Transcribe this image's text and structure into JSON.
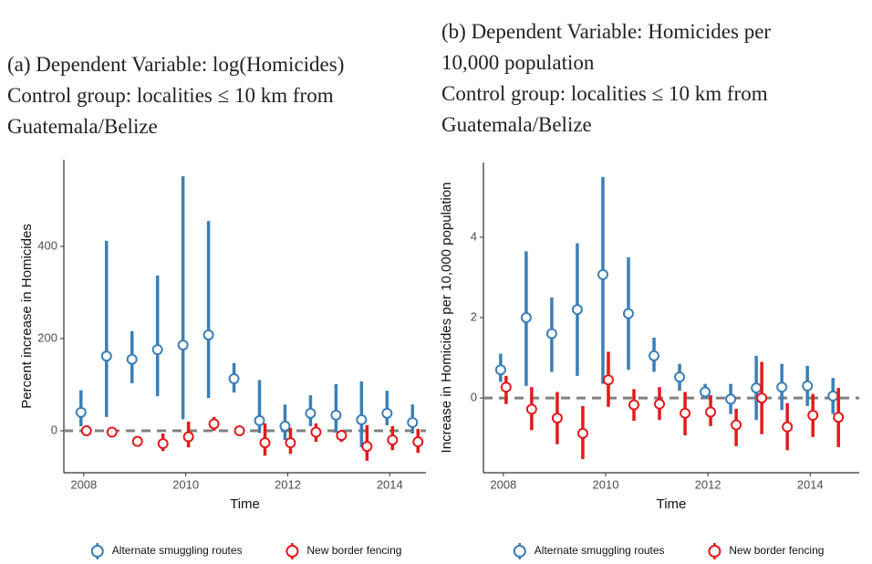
{
  "chart_data": [
    {
      "type": "errorbar",
      "title": [
        "(a) Dependent Variable: log(Homicides)"
      ],
      "subtitle": [
        "Control group: localities ≤ 10 km from",
        "Guatemala/Belize"
      ],
      "x_label": "Time",
      "y_label": "Percent increase in Homicides",
      "x": [
        2008,
        2008.5,
        2009,
        2009.5,
        2010,
        2010.5,
        2011,
        2011.5,
        2012,
        2012.5,
        2013,
        2013.5,
        2014,
        2014.5
      ],
      "series": [
        {
          "name": "Alternate smuggling routes",
          "color": "#3a7fb8",
          "values": [
            40,
            162,
            155,
            176,
            186,
            208,
            113,
            22,
            10,
            38,
            34,
            24,
            38,
            18
          ],
          "lower": [
            10,
            30,
            103,
            75,
            25,
            71,
            83,
            -5,
            -20,
            10,
            -4,
            -36,
            12,
            -6
          ],
          "upper": [
            88,
            412,
            216,
            337,
            552,
            455,
            147,
            110,
            57,
            77,
            101,
            107,
            87,
            57
          ]
        },
        {
          "name": "New border fencing",
          "color": "#e31a1c",
          "values": [
            0,
            -3,
            -23,
            -28,
            -13,
            15,
            0,
            -26,
            -26,
            -3,
            -10,
            -34,
            -20,
            -24
          ],
          "lower": [
            -10,
            -8,
            -28,
            -44,
            -36,
            0,
            -4,
            -54,
            -50,
            -24,
            -24,
            -65,
            -42,
            -48
          ],
          "upper": [
            12,
            2,
            -18,
            -6,
            20,
            30,
            4,
            16,
            6,
            16,
            2,
            12,
            10,
            4
          ]
        }
      ],
      "hline": 0,
      "xlim": [
        2007.61,
        2014.71
      ],
      "xticks": [
        2008,
        2010,
        2012,
        2014
      ],
      "ylim": [
        -91,
        588
      ],
      "yticks": [
        0,
        200,
        400
      ],
      "legend": "bottom"
    },
    {
      "type": "errorbar",
      "title": [
        "(b) Dependent Variable: Homicides per",
        "10,000 population"
      ],
      "subtitle": [
        "Control group: localities ≤ 10 km from",
        "Guatemala/Belize"
      ],
      "x_label": "Time",
      "y_label": "Increase in Homicides per 10,000 population",
      "x": [
        2008,
        2008.5,
        2009,
        2009.5,
        2010,
        2010.5,
        2011,
        2011.5,
        2012,
        2012.5,
        2013,
        2013.5,
        2014,
        2014.5
      ],
      "series": [
        {
          "name": "Alternate smuggling routes",
          "color": "#3a7fb8",
          "values": [
            0.7,
            2.0,
            1.6,
            2.2,
            3.07,
            2.1,
            1.05,
            0.52,
            0.15,
            -0.03,
            0.25,
            0.27,
            0.3,
            0.05
          ],
          "lower": [
            0.4,
            0.3,
            0.65,
            0.55,
            0.35,
            0.7,
            0.65,
            0.18,
            0,
            -0.4,
            -0.55,
            -0.3,
            -0.2,
            -0.4
          ],
          "upper": [
            1.1,
            3.65,
            2.5,
            3.85,
            5.5,
            3.5,
            1.5,
            0.85,
            0.35,
            0.35,
            1.05,
            0.85,
            0.8,
            0.5
          ]
        },
        {
          "name": "New border fencing",
          "color": "#e31a1c",
          "values": [
            0.27,
            -0.28,
            -0.5,
            -0.88,
            0.45,
            -0.17,
            -0.15,
            -0.38,
            -0.35,
            -0.67,
            0,
            -0.72,
            -0.43,
            -0.48
          ],
          "lower": [
            -0.15,
            -0.8,
            -1.15,
            -1.52,
            -0.22,
            -0.57,
            -0.55,
            -0.93,
            -0.7,
            -1.2,
            -0.9,
            -1.3,
            -0.97,
            -1.22
          ],
          "upper": [
            0.55,
            0.27,
            0.15,
            -0.2,
            1.15,
            0.22,
            0.27,
            0.15,
            0.07,
            -0.27,
            0.9,
            -0.13,
            0.1,
            0.25
          ]
        }
      ],
      "hline": 0,
      "xlim": [
        2007.61,
        2014.96
      ],
      "xticks": [
        2008,
        2010,
        2012,
        2014
      ],
      "ylim": [
        -1.86,
        5.86
      ],
      "yticks": [
        0,
        2,
        4
      ],
      "legend": "bottom"
    }
  ]
}
